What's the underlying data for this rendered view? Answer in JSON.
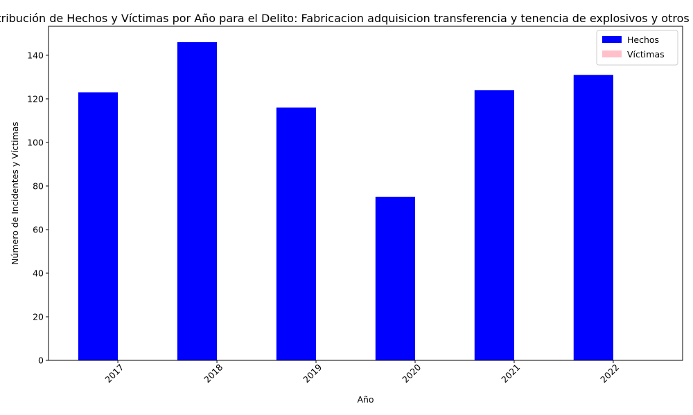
{
  "chart_data": {
    "type": "bar",
    "title": "Distribución de Hechos y Víctimas por Año para el Delito: Fabricacion adquisicion transferencia y tenencia de explosivos y otros materiales",
    "xlabel": "Año",
    "ylabel": "Número de Incidentes y Víctimas",
    "categories": [
      "2017",
      "2018",
      "2019",
      "2020",
      "2021",
      "2022"
    ],
    "series": [
      {
        "name": "Hechos",
        "color": "#0000ff",
        "values": [
          123,
          146,
          116,
          75,
          124,
          131
        ]
      },
      {
        "name": "Víctimas",
        "color": "#ffc0cb",
        "values": [
          0,
          0,
          0,
          0,
          0,
          0
        ]
      }
    ],
    "ylim": [
      0,
      153.3
    ],
    "yticks": [
      0,
      20,
      40,
      60,
      80,
      100,
      120,
      140
    ],
    "legend_position": "top-right",
    "grid": false
  }
}
